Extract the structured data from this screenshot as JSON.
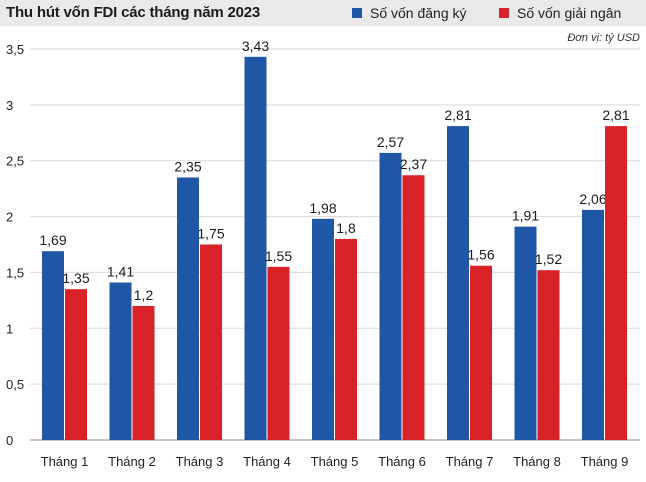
{
  "chart_data": {
    "type": "bar",
    "title": "Thu hút vốn FDI các tháng năm 2023",
    "unit_note": "Đơn vị: tỷ USD",
    "categories": [
      "Tháng 1",
      "Tháng 2",
      "Tháng 3",
      "Tháng 4",
      "Tháng 5",
      "Tháng 6",
      "Tháng 7",
      "Tháng 8",
      "Tháng 9"
    ],
    "series": [
      {
        "name": "Số vốn đăng ký",
        "color": "#1f56a5",
        "values": [
          1.69,
          1.41,
          2.35,
          3.43,
          1.98,
          2.57,
          2.81,
          1.91,
          2.06
        ],
        "labels": [
          "1,69",
          "1,41",
          "2,35",
          "3,43",
          "1,98",
          "2,57",
          "2,81",
          "1,91",
          "2,06"
        ]
      },
      {
        "name": "Số vốn giải ngân",
        "color": "#d92128",
        "values": [
          1.35,
          1.2,
          1.75,
          1.55,
          1.8,
          2.37,
          1.56,
          1.52,
          2.81
        ],
        "labels": [
          "1,35",
          "1,2",
          "1,75",
          "1,55",
          "1,8",
          "2,37",
          "1,56",
          "1,52",
          "2,81"
        ]
      }
    ],
    "ylim": [
      0,
      3.5
    ],
    "yticks": [
      0,
      0.5,
      1,
      1.5,
      2,
      2.5,
      3,
      3.5
    ],
    "ytick_labels": [
      "0",
      "0,5",
      "1",
      "1,5",
      "2",
      "2,5",
      "3",
      "3,5"
    ],
    "grid": true,
    "legend": "top-right"
  }
}
